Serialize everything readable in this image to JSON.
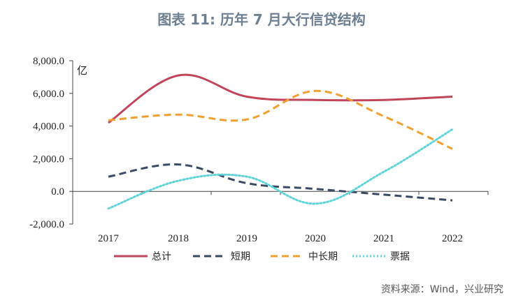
{
  "title": "图表 11: 历年 7 月大行信贷结构",
  "source": "资料来源：Wind，兴业研究",
  "chart_data": {
    "type": "line",
    "ylabel": "亿",
    "categories": [
      "2017",
      "2018",
      "2019",
      "2020",
      "2021",
      "2022"
    ],
    "ylim": [
      -2000,
      8000
    ],
    "yticks": [
      "8,000.0",
      "6,000.0",
      "4,000.0",
      "2,000.0",
      "0.0",
      "-2,000.0"
    ],
    "ytick_values": [
      8000,
      6000,
      4000,
      2000,
      0,
      -2000
    ],
    "legend_position": "bottom",
    "series": [
      {
        "name": "总计",
        "values": [
          4200,
          7100,
          5800,
          5600,
          5600,
          5800
        ],
        "color": "#c0455a",
        "style": "solid"
      },
      {
        "name": "短期",
        "values": [
          900,
          1650,
          500,
          150,
          -200,
          -550
        ],
        "color": "#3b4a63",
        "style": "dashed"
      },
      {
        "name": "中长期",
        "values": [
          4350,
          4700,
          4400,
          6150,
          4600,
          2600
        ],
        "color": "#f0a030",
        "style": "dashed"
      },
      {
        "name": "票据",
        "values": [
          -1050,
          650,
          900,
          -750,
          1200,
          3800
        ],
        "color": "#5fd3d8",
        "style": "dotted"
      }
    ]
  }
}
